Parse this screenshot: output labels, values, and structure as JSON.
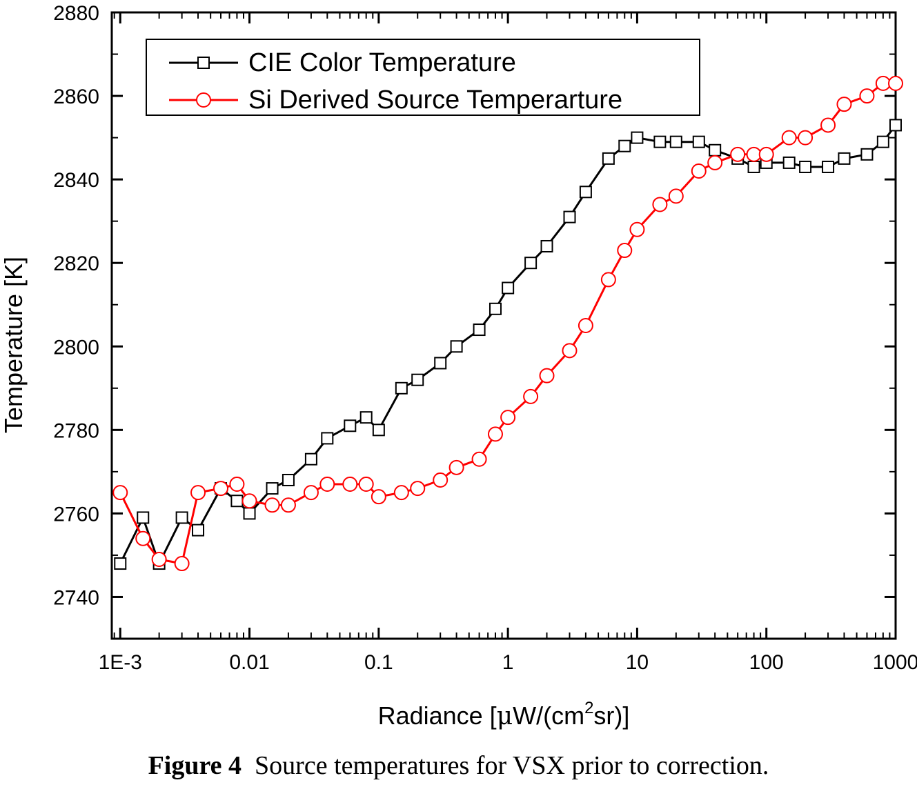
{
  "chart_data": {
    "type": "line",
    "xlabel_prefix": "Radiance [",
    "xlabel_mu": "μ",
    "xlabel_mid": "W/(cm",
    "xlabel_sup": "2",
    "xlabel_suffix": "sr)]",
    "ylabel": "Temperature [K]",
    "x_scale": "log",
    "xlim": [
      0.00086,
      1000
    ],
    "ylim": [
      2730,
      2880
    ],
    "x_ticks": [
      0.001,
      0.01,
      0.1,
      1,
      10,
      100,
      1000
    ],
    "x_tick_labels": [
      "1E-3",
      "0.01",
      "0.1",
      "1",
      "10",
      "100",
      "1000"
    ],
    "y_ticks": [
      2740,
      2760,
      2780,
      2800,
      2820,
      2840,
      2860,
      2880
    ],
    "y_tick_labels": [
      "2740",
      "2760",
      "2780",
      "2800",
      "2820",
      "2840",
      "2860",
      "2880"
    ],
    "legend_position": "top-left",
    "grid": false,
    "series": [
      {
        "name": "CIE Color Temperature",
        "color": "#000000",
        "marker": "square",
        "x": [
          0.001,
          0.0015,
          0.002,
          0.003,
          0.004,
          0.006,
          0.008,
          0.01,
          0.015,
          0.02,
          0.03,
          0.04,
          0.06,
          0.08,
          0.1,
          0.15,
          0.2,
          0.3,
          0.4,
          0.6,
          0.8,
          1,
          1.5,
          2,
          3,
          4,
          6,
          8,
          10,
          15,
          20,
          30,
          40,
          60,
          80,
          100,
          150,
          200,
          300,
          400,
          600,
          800,
          1000
        ],
        "y": [
          2748,
          2759,
          2748,
          2759,
          2756,
          2766,
          2763,
          2760,
          2766,
          2768,
          2773,
          2778,
          2781,
          2783,
          2780,
          2790,
          2792,
          2796,
          2800,
          2804,
          2809,
          2814,
          2820,
          2824,
          2831,
          2837,
          2845,
          2848,
          2850,
          2849,
          2849,
          2849,
          2847,
          2845,
          2843,
          2844,
          2844,
          2843,
          2843,
          2845,
          2846,
          2849,
          2853
        ]
      },
      {
        "name": "Si Derived Source Temperarture",
        "color": "#ff0000",
        "marker": "circle",
        "x": [
          0.001,
          0.0015,
          0.002,
          0.003,
          0.004,
          0.006,
          0.008,
          0.01,
          0.015,
          0.02,
          0.03,
          0.04,
          0.06,
          0.08,
          0.1,
          0.15,
          0.2,
          0.3,
          0.4,
          0.6,
          0.8,
          1,
          1.5,
          2,
          3,
          4,
          6,
          8,
          10,
          15,
          20,
          30,
          40,
          60,
          80,
          100,
          150,
          200,
          300,
          400,
          600,
          800,
          1000
        ],
        "y": [
          2765,
          2754,
          2749,
          2748,
          2765,
          2766,
          2767,
          2763,
          2762,
          2762,
          2765,
          2767,
          2767,
          2767,
          2764,
          2765,
          2766,
          2768,
          2771,
          2773,
          2779,
          2783,
          2788,
          2793,
          2799,
          2805,
          2816,
          2823,
          2828,
          2834,
          2836,
          2842,
          2844,
          2846,
          2846,
          2846,
          2850,
          2850,
          2853,
          2858,
          2860,
          2863,
          2863
        ]
      }
    ]
  },
  "caption": {
    "label": "Figure 4",
    "text": "  Source temperatures for VSX prior to correction."
  }
}
